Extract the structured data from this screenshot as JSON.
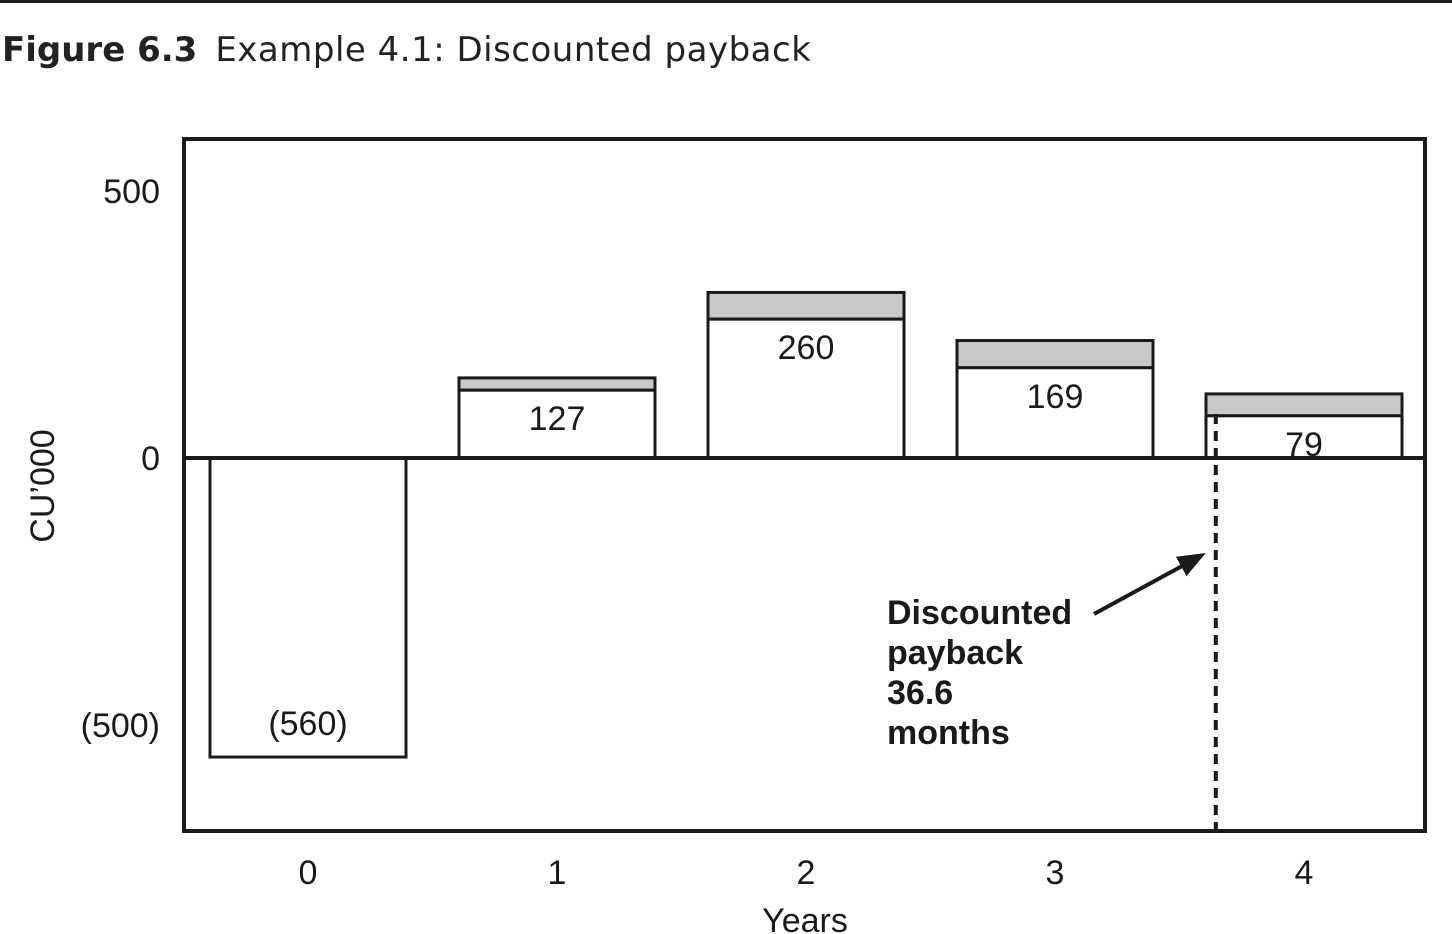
{
  "figure": {
    "label": "Figure 6.3",
    "caption": "Example 4.1: Discounted payback"
  },
  "chart_data": {
    "type": "bar",
    "categories": [
      "0",
      "1",
      "2",
      "3",
      "4"
    ],
    "values": [
      -560,
      127,
      260,
      169,
      79
    ],
    "value_labels": [
      "(560)",
      "127",
      "260",
      "169",
      "79"
    ],
    "undiscounted_values": [
      -560,
      150,
      310,
      220,
      120
    ],
    "xlabel": "Years",
    "ylabel": "CU’000",
    "yticks": [
      500,
      0,
      -500
    ],
    "ytick_labels": [
      "500",
      "0",
      "(500)"
    ],
    "ylim": [
      -700,
      600
    ],
    "grid": false,
    "colors": {
      "discounted_fill": "#ffffff",
      "difference_fill": "#c8c9cb",
      "stroke": "#1a1a1a"
    },
    "annotation": {
      "lines": [
        "Discounted",
        "payback",
        "36.6",
        "months"
      ],
      "payback_months": 36.6
    }
  }
}
